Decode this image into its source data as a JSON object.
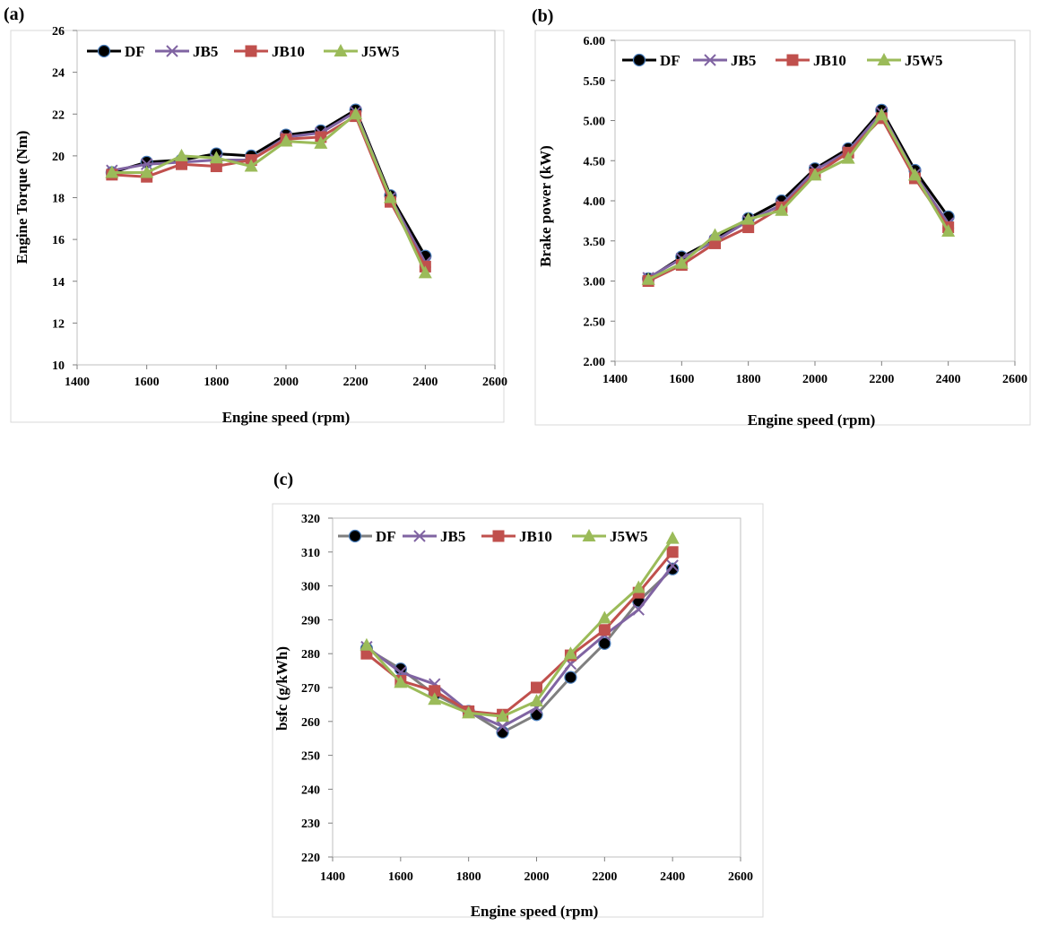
{
  "series_styles": [
    {
      "name": "DF",
      "color": "#000000",
      "marker": "circle"
    },
    {
      "name": "JB5",
      "color": "#8064A2",
      "marker": "x"
    },
    {
      "name": "JB10",
      "color": "#C0504D",
      "marker": "square"
    },
    {
      "name": "J5W5",
      "color": "#9BBB59",
      "marker": "triangle"
    }
  ],
  "chart_data": [
    {
      "panel": "(a)",
      "type": "line",
      "xlabel": "Engine speed (rpm)",
      "ylabel": "Engine  Torque (Nm)",
      "xlim": [
        1400,
        2600
      ],
      "ylim": [
        10,
        26
      ],
      "xticks": [
        1400,
        1600,
        1800,
        2000,
        2200,
        2400,
        2600
      ],
      "yticks": [
        10,
        12,
        14,
        16,
        18,
        20,
        22,
        24,
        26
      ],
      "ytick_labels": [
        "10",
        "12",
        "14",
        "16",
        "18",
        "20",
        "22",
        "24",
        "26"
      ],
      "legend": "top-left",
      "x": [
        1500,
        1600,
        1700,
        1800,
        1900,
        2000,
        2100,
        2200,
        2300,
        2400
      ],
      "series": [
        {
          "name": "DF",
          "values": [
            19.2,
            19.7,
            19.8,
            20.1,
            20.0,
            21.0,
            21.2,
            22.2,
            18.1,
            15.2
          ]
        },
        {
          "name": "JB5",
          "values": [
            19.3,
            19.6,
            19.7,
            19.8,
            19.8,
            20.9,
            21.1,
            22.1,
            18.0,
            14.9
          ]
        },
        {
          "name": "JB10",
          "values": [
            19.1,
            19.0,
            19.6,
            19.5,
            19.8,
            20.8,
            20.9,
            21.9,
            17.8,
            14.7
          ]
        },
        {
          "name": "J5W5",
          "values": [
            19.2,
            19.2,
            20.0,
            19.9,
            19.5,
            20.7,
            20.6,
            22.0,
            18.0,
            14.4
          ]
        }
      ]
    },
    {
      "panel": "(b)",
      "type": "line",
      "xlabel": "Engine  speed (rpm)",
      "ylabel": "Brake power (kW)",
      "xlim": [
        1400,
        2600
      ],
      "ylim": [
        2.0,
        6.0
      ],
      "xticks": [
        1400,
        1600,
        1800,
        2000,
        2200,
        2400,
        2600
      ],
      "yticks": [
        2.0,
        2.5,
        3.0,
        3.5,
        4.0,
        4.5,
        5.0,
        5.5,
        6.0
      ],
      "ytick_labels": [
        "2.00",
        "2.50",
        "3.00",
        "3.50",
        "4.00",
        "4.50",
        "5.00",
        "5.50",
        "6.00"
      ],
      "legend": "top-left",
      "x": [
        1500,
        1600,
        1700,
        1800,
        1900,
        2000,
        2100,
        2200,
        2300,
        2400
      ],
      "series": [
        {
          "name": "DF",
          "values": [
            3.03,
            3.3,
            3.52,
            3.78,
            4.0,
            4.4,
            4.65,
            5.13,
            4.38,
            3.8
          ]
        },
        {
          "name": "JB5",
          "values": [
            3.04,
            3.28,
            3.5,
            3.75,
            3.95,
            4.38,
            4.62,
            5.1,
            4.33,
            3.72
          ]
        },
        {
          "name": "JB10",
          "values": [
            3.0,
            3.2,
            3.47,
            3.67,
            3.92,
            4.33,
            4.6,
            5.03,
            4.28,
            3.67
          ]
        },
        {
          "name": "J5W5",
          "values": [
            3.02,
            3.22,
            3.57,
            3.77,
            3.88,
            4.32,
            4.53,
            5.07,
            4.32,
            3.62
          ]
        }
      ]
    },
    {
      "panel": "(c)",
      "type": "line",
      "xlabel": "Engine  speed (rpm)",
      "ylabel": "bsfc (g/kWh)",
      "xlim": [
        1400,
        2600
      ],
      "ylim": [
        220,
        320
      ],
      "xticks": [
        1400,
        1600,
        1800,
        2000,
        2200,
        2400,
        2600
      ],
      "yticks": [
        220,
        230,
        240,
        250,
        260,
        270,
        280,
        290,
        300,
        310,
        320
      ],
      "ytick_labels": [
        "220",
        "230",
        "240",
        "250",
        "260",
        "270",
        "280",
        "290",
        "300",
        "310",
        "320"
      ],
      "legend": "top-left",
      "x": [
        1500,
        1600,
        1700,
        1800,
        1900,
        2000,
        2100,
        2200,
        2300,
        2400
      ],
      "series": [
        {
          "name": "DF",
          "values": [
            281.5,
            275.5,
            268.0,
            263.0,
            256.8,
            262.0,
            273.0,
            283.0,
            295.5,
            305.0
          ]
        },
        {
          "name": "JB5",
          "values": [
            282.0,
            274.5,
            271.0,
            263.0,
            258.5,
            264.0,
            277.0,
            285.5,
            293.0,
            306.0
          ]
        },
        {
          "name": "JB10",
          "values": [
            280.0,
            272.0,
            269.0,
            263.0,
            262.0,
            270.0,
            279.5,
            287.0,
            298.0,
            310.0
          ]
        },
        {
          "name": "J5W5",
          "values": [
            282.5,
            271.5,
            266.5,
            262.5,
            261.5,
            266.0,
            280.0,
            290.5,
            299.5,
            314.0
          ]
        }
      ]
    }
  ]
}
